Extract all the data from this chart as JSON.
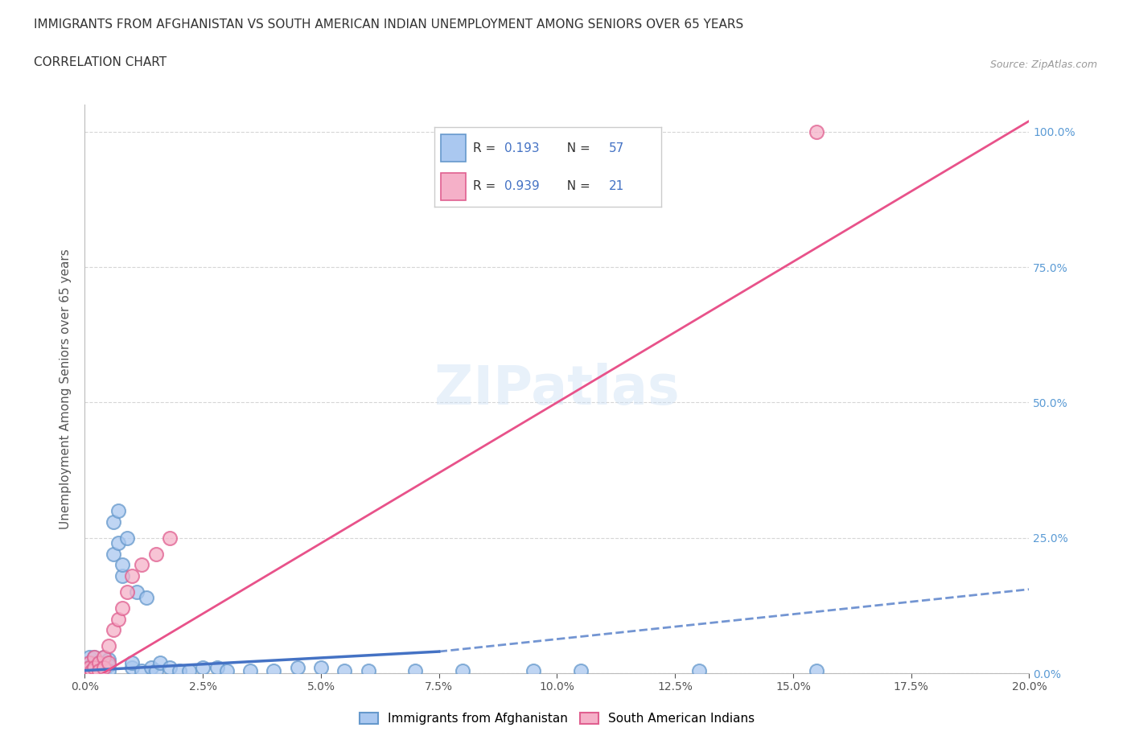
{
  "title": "IMMIGRANTS FROM AFGHANISTAN VS SOUTH AMERICAN INDIAN UNEMPLOYMENT AMONG SENIORS OVER 65 YEARS",
  "subtitle": "CORRELATION CHART",
  "source": "Source: ZipAtlas.com",
  "xlabel_range": [
    0.0,
    0.2
  ],
  "ylabel_range": [
    0.0,
    1.05
  ],
  "watermark": "ZIPatlas",
  "legend_color1": "#aac8f0",
  "legend_color2": "#f5b0c8",
  "series1_color_face": "#aac8f0",
  "series1_color_edge": "#6699cc",
  "series2_color_face": "#f5b0c8",
  "series2_color_edge": "#e06090",
  "trendline1_color": "#4472c4",
  "trendline2_color": "#e8528a",
  "R1": 0.193,
  "N1": 57,
  "R2": 0.939,
  "N2": 21,
  "series1_x": [
    0.0005,
    0.0007,
    0.0008,
    0.001,
    0.001,
    0.001,
    0.0015,
    0.0015,
    0.002,
    0.002,
    0.002,
    0.002,
    0.0025,
    0.0025,
    0.003,
    0.003,
    0.003,
    0.0035,
    0.004,
    0.004,
    0.004,
    0.005,
    0.005,
    0.005,
    0.006,
    0.006,
    0.007,
    0.007,
    0.008,
    0.008,
    0.009,
    0.01,
    0.01,
    0.011,
    0.012,
    0.013,
    0.014,
    0.015,
    0.016,
    0.018,
    0.02,
    0.022,
    0.025,
    0.028,
    0.03,
    0.035,
    0.04,
    0.045,
    0.05,
    0.055,
    0.06,
    0.07,
    0.08,
    0.095,
    0.105,
    0.13,
    0.155
  ],
  "series1_y": [
    0.01,
    0.02,
    0.005,
    0.03,
    0.01,
    0.005,
    0.015,
    0.005,
    0.02,
    0.01,
    0.005,
    0.03,
    0.015,
    0.005,
    0.02,
    0.01,
    0.005,
    0.015,
    0.03,
    0.01,
    0.005,
    0.025,
    0.015,
    0.005,
    0.22,
    0.28,
    0.24,
    0.3,
    0.18,
    0.2,
    0.25,
    0.01,
    0.02,
    0.15,
    0.005,
    0.14,
    0.01,
    0.005,
    0.02,
    0.01,
    0.005,
    0.005,
    0.01,
    0.01,
    0.005,
    0.005,
    0.005,
    0.01,
    0.01,
    0.005,
    0.005,
    0.005,
    0.005,
    0.005,
    0.005,
    0.005,
    0.005
  ],
  "series2_x": [
    0.0005,
    0.001,
    0.001,
    0.0015,
    0.002,
    0.002,
    0.003,
    0.003,
    0.004,
    0.004,
    0.005,
    0.005,
    0.006,
    0.007,
    0.008,
    0.009,
    0.01,
    0.012,
    0.015,
    0.018,
    0.155
  ],
  "series2_y": [
    0.005,
    0.02,
    0.01,
    0.005,
    0.03,
    0.01,
    0.02,
    0.005,
    0.03,
    0.01,
    0.05,
    0.02,
    0.08,
    0.1,
    0.12,
    0.15,
    0.18,
    0.2,
    0.22,
    0.25,
    1.0
  ],
  "bottom_legend": [
    "Immigrants from Afghanistan",
    "South American Indians"
  ]
}
